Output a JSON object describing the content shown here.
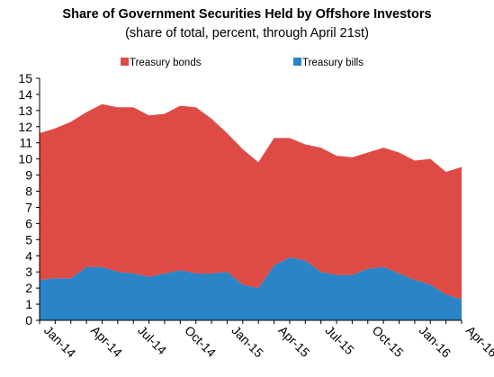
{
  "chart_data": {
    "type": "area",
    "stacked": true,
    "title": "Share of Government Securities Held by Offshore Investors",
    "subtitle": "(share of total, percent, through April 21st)",
    "xlabel": "",
    "ylabel": "",
    "ylim": [
      0,
      15
    ],
    "yticks": [
      0,
      1,
      2,
      3,
      4,
      5,
      6,
      7,
      8,
      9,
      10,
      11,
      12,
      13,
      14,
      15
    ],
    "x_tick_labels": [
      "Jan-14",
      "Apr-14",
      "Jul-14",
      "Oct-14",
      "Jan-15",
      "Apr-15",
      "Jul-15",
      "Oct-15",
      "Jan-16",
      "Apr-16"
    ],
    "x": [
      "Jan-14",
      "Feb-14",
      "Mar-14",
      "Apr-14",
      "May-14",
      "Jun-14",
      "Jul-14",
      "Aug-14",
      "Sep-14",
      "Oct-14",
      "Nov-14",
      "Dec-14",
      "Jan-15",
      "Feb-15",
      "Mar-15",
      "Apr-15",
      "May-15",
      "Jun-15",
      "Jul-15",
      "Aug-15",
      "Sep-15",
      "Oct-15",
      "Nov-15",
      "Dec-15",
      "Jan-16",
      "Feb-16",
      "Mar-16",
      "Apr-16"
    ],
    "grid": false,
    "legend_position": "top",
    "series": [
      {
        "name": "Treasury bills",
        "color": "#2a84c6",
        "values": [
          2.5,
          2.6,
          2.6,
          3.3,
          3.3,
          3.0,
          2.9,
          2.7,
          2.9,
          3.1,
          2.9,
          2.9,
          3.0,
          2.2,
          2.0,
          3.4,
          3.9,
          3.7,
          3.0,
          2.8,
          2.8,
          3.2,
          3.3,
          2.9,
          2.5,
          2.2,
          1.6,
          1.3
        ]
      },
      {
        "name": "Treasury bonds",
        "color": "#de4b45",
        "values": [
          9.1,
          9.3,
          9.7,
          9.6,
          10.1,
          10.2,
          10.3,
          10.0,
          9.9,
          10.2,
          10.3,
          9.6,
          8.6,
          8.4,
          7.8,
          7.9,
          7.4,
          7.2,
          7.7,
          7.4,
          7.3,
          7.2,
          7.4,
          7.5,
          7.4,
          7.8,
          7.6,
          8.2
        ]
      }
    ]
  }
}
